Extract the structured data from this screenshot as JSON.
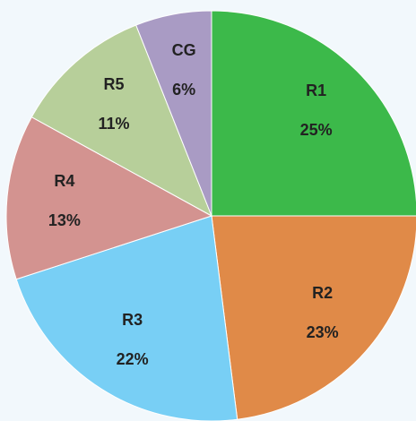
{
  "chart_data": {
    "type": "pie",
    "categories": [
      "R1",
      "R2",
      "R3",
      "R4",
      "R5",
      "CG"
    ],
    "values": [
      25,
      23,
      22,
      13,
      11,
      6
    ],
    "value_labels": [
      "25%",
      "23%",
      "22%",
      "13%",
      "11%",
      "6%"
    ],
    "colors": [
      "#3cb94a",
      "#e08a48",
      "#78cff5",
      "#d39390",
      "#b7cf9a",
      "#a99bc4"
    ]
  }
}
